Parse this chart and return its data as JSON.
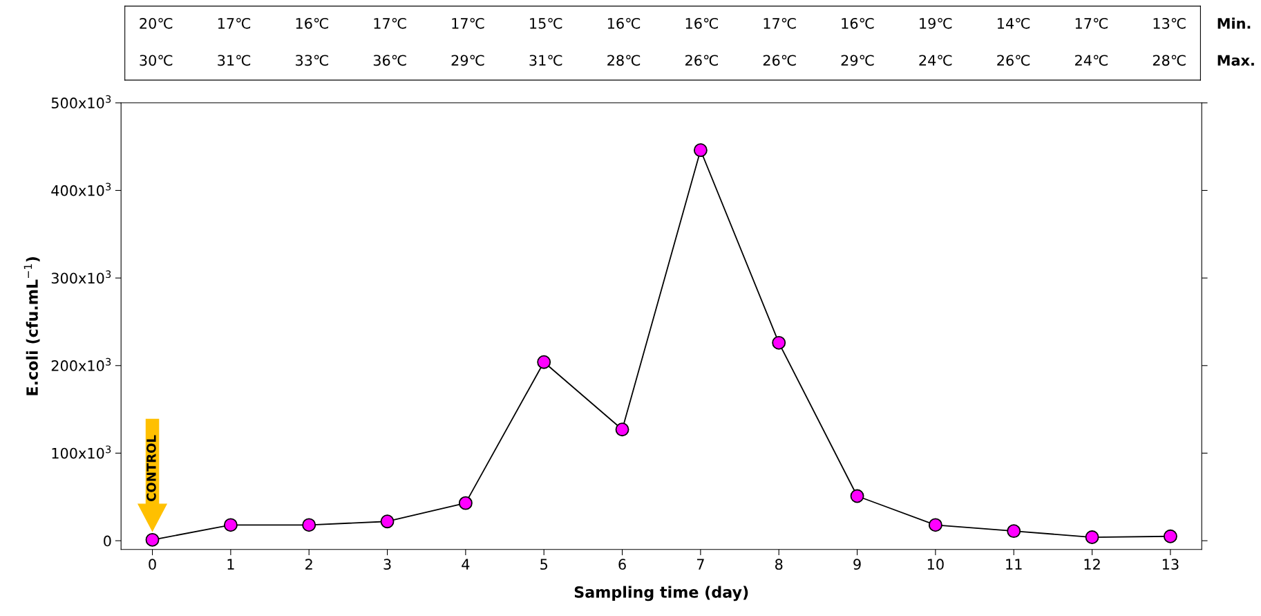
{
  "chart_data": {
    "type": "line",
    "xlabel": "Sampling time (day)",
    "ylabel": "E.coli (cfu.mL$^{−1}$)",
    "x": [
      0,
      1,
      2,
      3,
      4,
      5,
      6,
      7,
      8,
      9,
      10,
      11,
      12,
      13
    ],
    "series": [
      {
        "color": "#ff00ff",
        "values": [
          1000,
          18000,
          18000,
          22000,
          43000,
          204000,
          127000,
          446000,
          226000,
          51000,
          18000,
          11000,
          4000,
          5000
        ]
      }
    ],
    "xlim": [
      -0.4,
      13.4
    ],
    "xticks": [
      0,
      1,
      2,
      3,
      4,
      5,
      6,
      7,
      8,
      9,
      10,
      11,
      12,
      13
    ],
    "ylim": [
      -10000,
      500000
    ],
    "yticks": [
      {
        "value": 0,
        "label": "0"
      },
      {
        "value": 100000,
        "label": "100x10$^{3}$"
      },
      {
        "value": 200000,
        "label": "200x10$^{3}$"
      },
      {
        "value": 300000,
        "label": "300x10$^{3}$"
      },
      {
        "value": 400000,
        "label": "400x10$^{3}$"
      },
      {
        "value": 500000,
        "label": "500x10$^{3}$"
      }
    ],
    "marker": "circle",
    "line_style": "solid",
    "grid": false,
    "legend": false,
    "annotations": [
      "20℃",
      "17℃",
      "16℃",
      "17℃",
      "17℃",
      "15℃",
      "16℃",
      "16℃",
      "17℃",
      "16℃",
      "19℃",
      "14℃",
      "17℃",
      "13℃",
      "Min.",
      "30℃",
      "31℃",
      "33℃",
      "36℃",
      "29℃",
      "31℃",
      "28℃",
      "26℃",
      "26℃",
      "29℃",
      "24℃",
      "26℃",
      "24℃",
      "28℃",
      "Max.",
      "CONTROL"
    ]
  }
}
